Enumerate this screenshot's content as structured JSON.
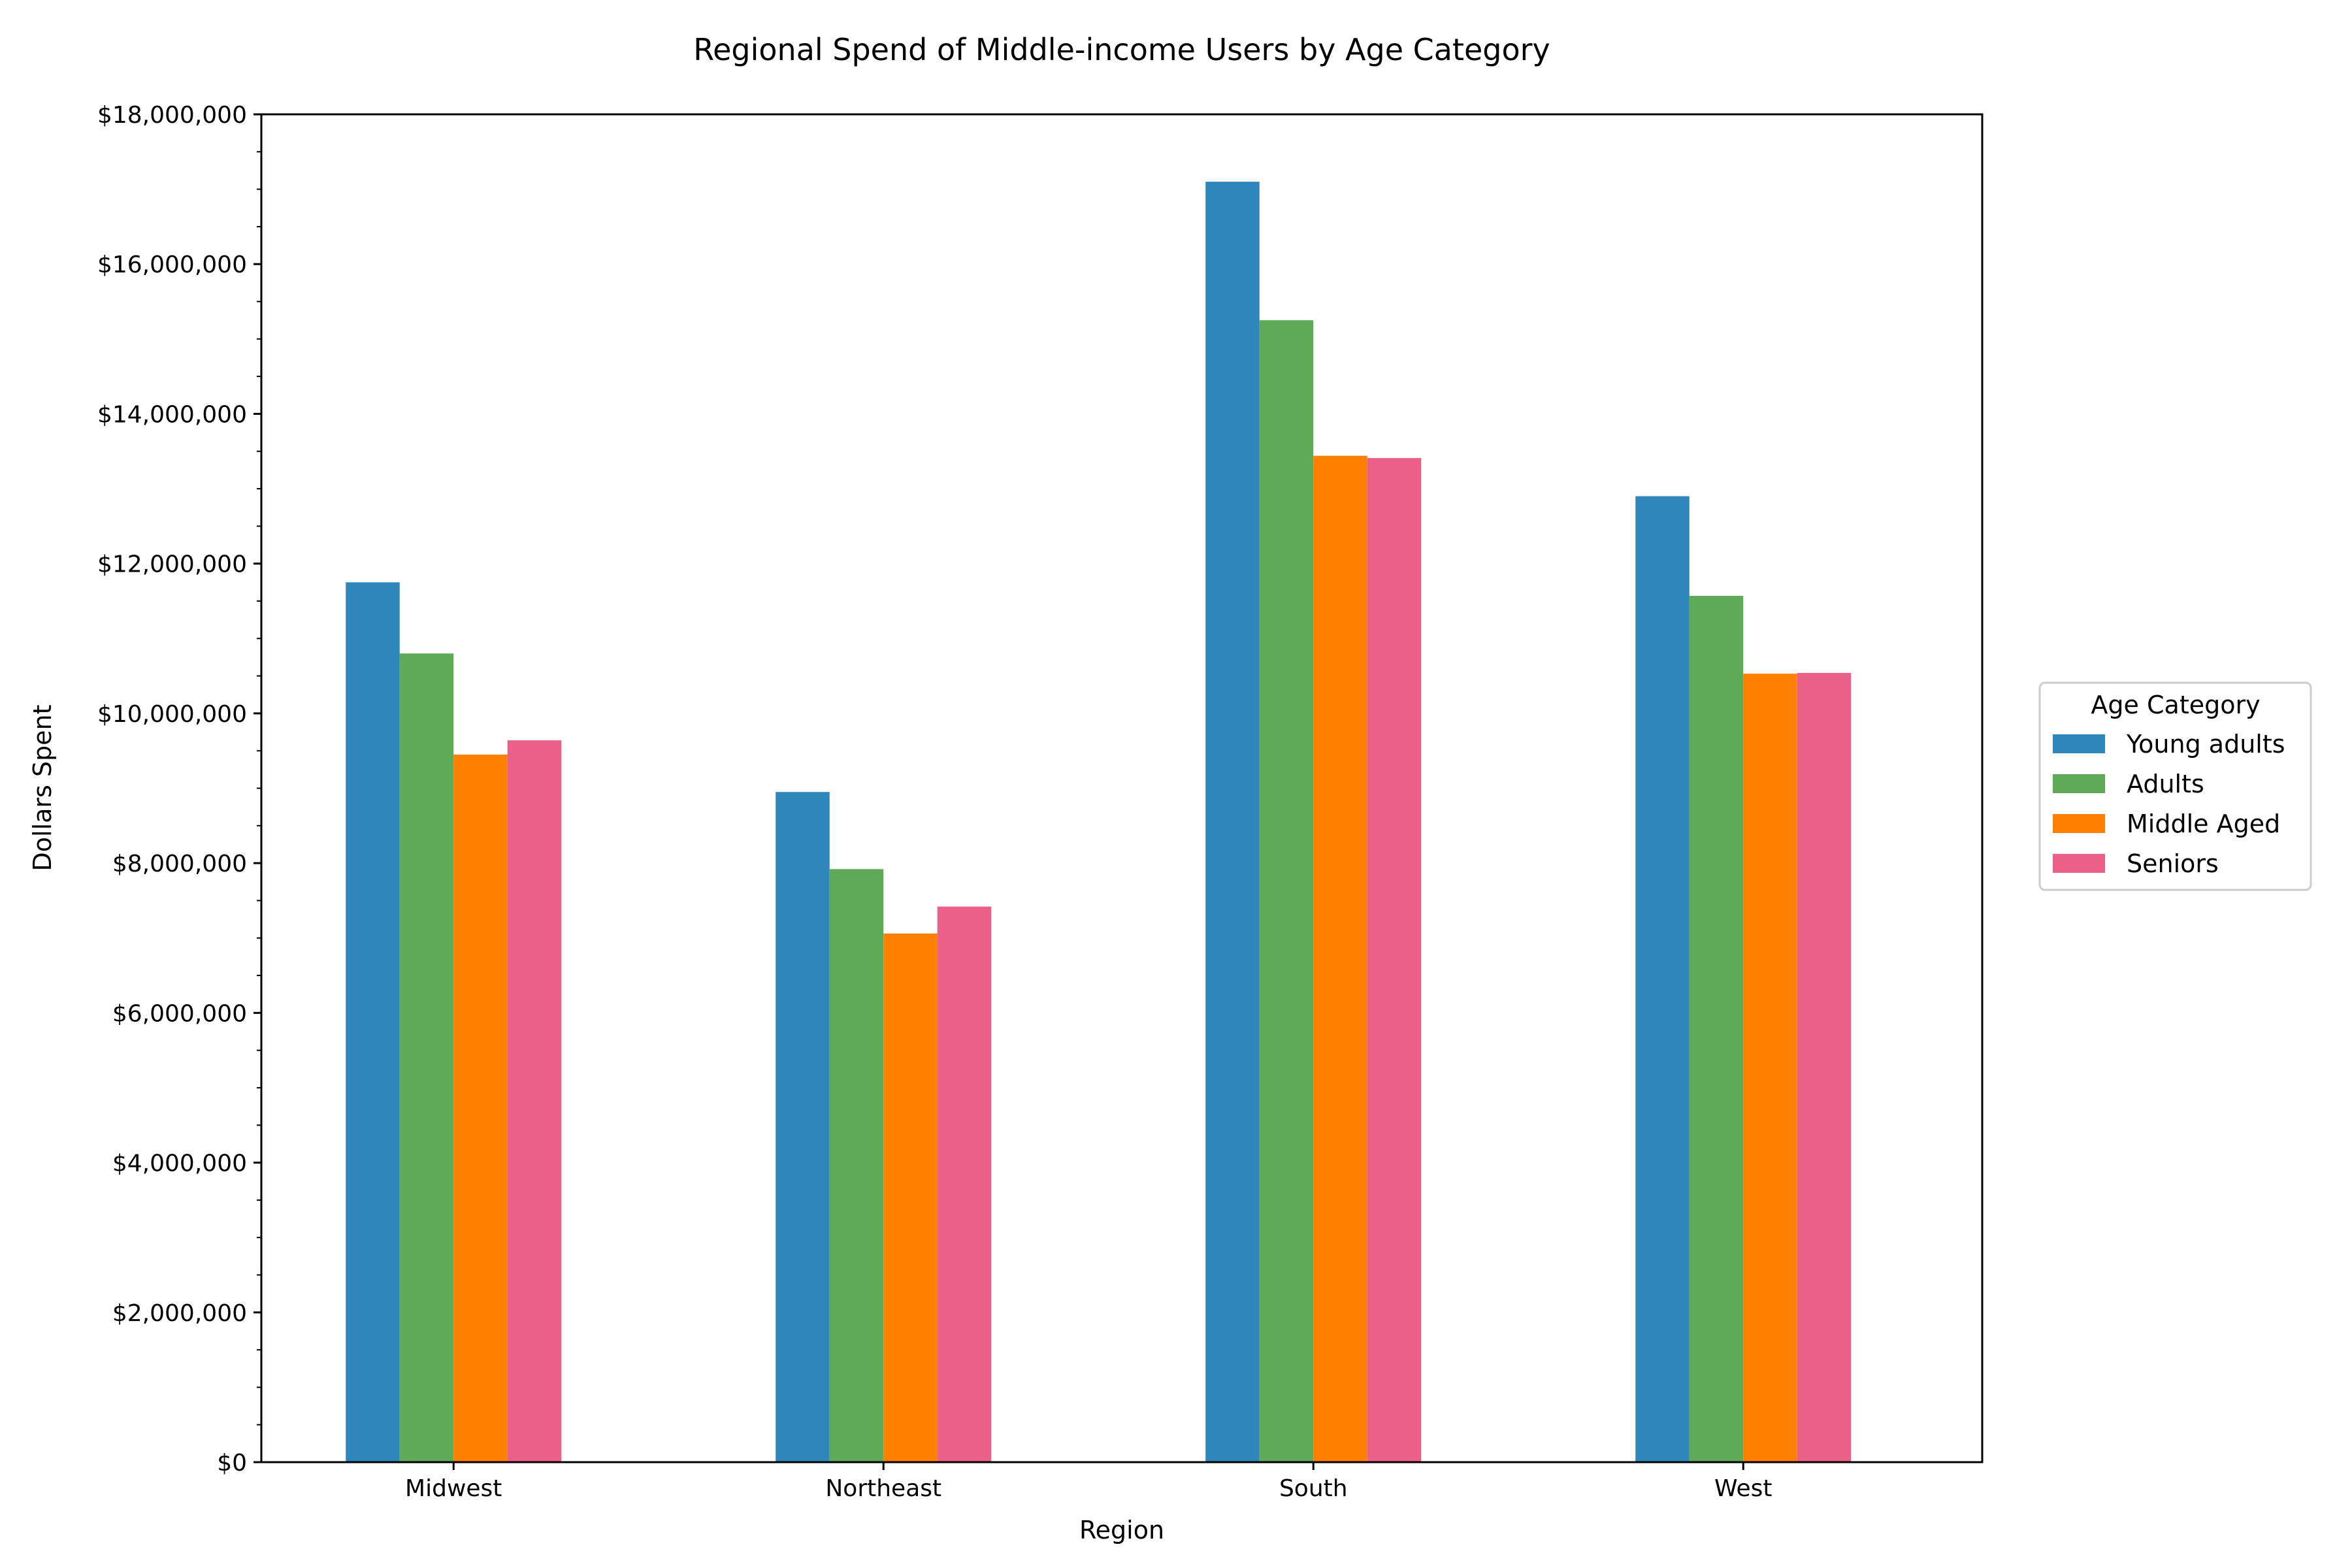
{
  "chart_data": {
    "type": "bar",
    "title": "Regional Spend of Middle-income Users by Age Category",
    "xlabel": "Region",
    "ylabel": "Dollars Spent",
    "categories": [
      "Midwest",
      "Northeast",
      "South",
      "West"
    ],
    "ylim": [
      0,
      18000000
    ],
    "yticks": [
      0,
      2000000,
      4000000,
      6000000,
      8000000,
      10000000,
      12000000,
      14000000,
      16000000,
      18000000
    ],
    "ytick_labels": [
      "$0",
      "$2,000,000",
      "$4,000,000",
      "$6,000,000",
      "$8,000,000",
      "$10,000,000",
      "$12,000,000",
      "$14,000,000",
      "$16,000,000",
      "$18,000,000"
    ],
    "grid": false,
    "legend": {
      "title": "Age Category",
      "placement": "center-right outside"
    },
    "series": [
      {
        "name": "Young adults",
        "color": "#2e86bb",
        "values": [
          11750000,
          8950000,
          17100000,
          12900000
        ]
      },
      {
        "name": "Adults",
        "color": "#5faa57",
        "values": [
          10800000,
          7920000,
          15250000,
          11570000
        ]
      },
      {
        "name": "Middle Aged",
        "color": "#ff8000",
        "values": [
          9450000,
          7060000,
          13440000,
          10530000
        ]
      },
      {
        "name": "Seniors",
        "color": "#ea6088",
        "values": [
          9640000,
          7420000,
          13410000,
          10540000
        ]
      }
    ]
  }
}
